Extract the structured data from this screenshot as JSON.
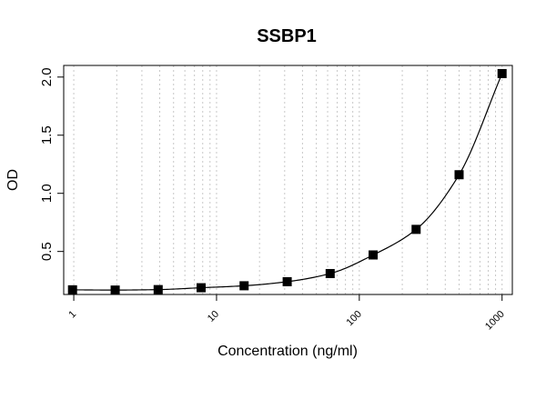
{
  "chart_data": {
    "type": "scatter",
    "title": "SSBP1",
    "xlabel": "Concentration (ng/ml)",
    "ylabel": "OD",
    "x_scale": "log",
    "xlim": [
      0.85,
      1180
    ],
    "ylim": [
      0.13,
      2.1
    ],
    "x_ticks": [
      1,
      10,
      100,
      1000
    ],
    "x_tick_labels": [
      "1",
      "10",
      "100",
      "1000"
    ],
    "y_ticks": [
      0.5,
      1.0,
      1.5,
      2.0
    ],
    "y_tick_labels": [
      "0.5",
      "1.0",
      "1.5",
      "2.0"
    ],
    "grid": "vertical dotted at log minor ticks",
    "series": [
      {
        "marker": "square",
        "color": "#000000",
        "x": [
          0.98,
          1.95,
          3.9,
          7.8,
          15.6,
          31.25,
          62.5,
          125,
          250,
          500,
          1000
        ],
        "y": [
          0.17,
          0.168,
          0.172,
          0.188,
          0.205,
          0.24,
          0.31,
          0.47,
          0.69,
          1.16,
          2.03
        ]
      }
    ],
    "fit_curve": {
      "type": "line",
      "color": "#000000"
    }
  }
}
